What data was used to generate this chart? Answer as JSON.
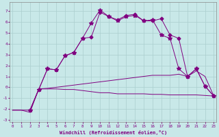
{
  "background_color": "#c8e8e8",
  "grid_color": "#aacece",
  "line_color": "#800080",
  "xlabel": "Windchill (Refroidissement éolien,°C)",
  "xlabel_color": "#800080",
  "ylim": [
    -3.2,
    7.8
  ],
  "xlim": [
    -0.3,
    23.3
  ],
  "yticks": [
    -3,
    -2,
    -1,
    0,
    1,
    2,
    3,
    4,
    5,
    6,
    7
  ],
  "xticks": [
    0,
    1,
    2,
    3,
    4,
    5,
    6,
    7,
    8,
    9,
    10,
    11,
    12,
    13,
    14,
    15,
    16,
    17,
    18,
    19,
    20,
    21,
    22,
    23
  ],
  "line1_x": [
    2,
    3,
    4,
    5,
    6,
    7,
    8,
    9,
    10,
    11,
    12,
    13,
    14,
    15,
    16,
    17,
    18,
    19,
    20,
    21,
    22,
    23
  ],
  "line1_y": [
    -2.1,
    -0.2,
    1.7,
    1.6,
    2.9,
    3.2,
    4.5,
    5.9,
    7.1,
    6.5,
    6.1,
    6.5,
    6.6,
    6.1,
    6.2,
    4.8,
    4.5,
    1.7,
    1.0,
    1.7,
    0.1,
    -0.8
  ],
  "line2_x": [
    2,
    3,
    4,
    5,
    6,
    7,
    8,
    9,
    10,
    11,
    12,
    13,
    14,
    15,
    16,
    17,
    18,
    19,
    20,
    21,
    22,
    23
  ],
  "line2_y": [
    -2.1,
    -0.2,
    1.7,
    1.6,
    2.9,
    3.2,
    4.5,
    4.6,
    6.9,
    6.5,
    6.2,
    6.6,
    6.7,
    6.1,
    6.1,
    6.3,
    4.8,
    4.5,
    1.0,
    1.7,
    0.1,
    -0.8
  ],
  "line3_x": [
    0,
    1,
    2,
    3,
    4,
    5,
    6,
    7,
    8,
    9,
    10,
    11,
    12,
    13,
    14,
    15,
    16,
    17,
    18,
    19,
    20,
    21,
    22,
    23
  ],
  "line3_y": [
    -2.1,
    -2.1,
    -2.1,
    -0.15,
    -0.15,
    -0.15,
    -0.2,
    -0.2,
    -0.3,
    -0.4,
    -0.5,
    -0.5,
    -0.6,
    -0.6,
    -0.6,
    -0.6,
    -0.65,
    -0.65,
    -0.7,
    -0.7,
    -0.7,
    -0.7,
    -0.75,
    -0.8
  ],
  "line4_x": [
    0,
    1,
    2,
    3,
    4,
    5,
    6,
    7,
    8,
    9,
    10,
    11,
    12,
    13,
    14,
    15,
    16,
    17,
    18,
    19,
    20,
    21,
    22,
    23
  ],
  "line4_y": [
    -2.1,
    -2.1,
    -2.3,
    -0.15,
    -0.1,
    0.0,
    0.1,
    0.2,
    0.3,
    0.4,
    0.5,
    0.6,
    0.7,
    0.8,
    0.9,
    1.0,
    1.1,
    1.1,
    1.1,
    1.2,
    1.0,
    1.5,
    1.0,
    -0.8
  ]
}
